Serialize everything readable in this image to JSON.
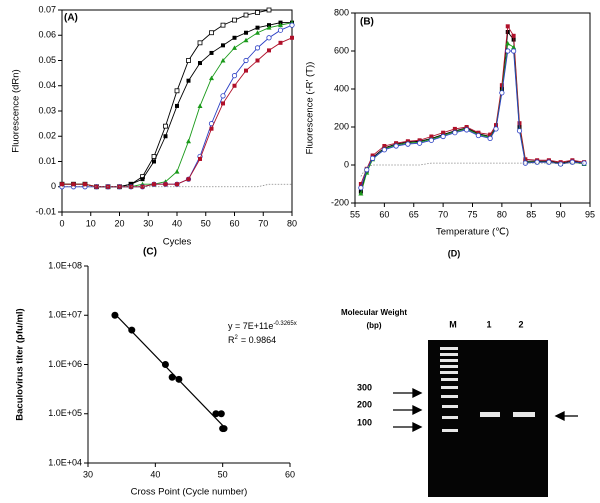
{
  "chart_data": [
    {
      "type": "line",
      "title": "(A)",
      "x_label": "Cycles",
      "y_label": "Fluorescence (dRn)",
      "x": [
        0,
        4,
        8,
        12,
        16,
        20,
        24,
        28,
        32,
        36,
        40,
        44,
        48,
        52,
        56,
        60,
        64,
        68,
        72,
        76,
        80
      ],
      "xlim": [
        0,
        80
      ],
      "xticks": [
        0,
        10,
        20,
        30,
        40,
        50,
        60,
        70,
        80
      ],
      "ylim": [
        -0.01,
        0.07
      ],
      "yticks": [
        -0.01,
        0,
        0.01,
        0.02,
        0.03,
        0.04,
        0.05,
        0.06,
        0.07
      ],
      "series": [
        {
          "color": "#000000",
          "marker": "square-open",
          "values": [
            0.001,
            0.001,
            0.001,
            0,
            0,
            0,
            0.001,
            0.004,
            0.012,
            0.024,
            0.038,
            0.05,
            0.057,
            0.061,
            0.064,
            0.066,
            0.068,
            0.069,
            0.07,
            null,
            null
          ]
        },
        {
          "color": "#000000",
          "marker": "square-filled",
          "values": [
            0.001,
            0.001,
            0.001,
            0,
            0,
            0,
            0.001,
            0.003,
            0.01,
            0.02,
            0.032,
            0.042,
            0.049,
            0.053,
            0.056,
            0.059,
            0.061,
            0.063,
            0.064,
            0.065,
            0.065
          ]
        },
        {
          "color": "#1a9a1a",
          "marker": "triangle",
          "values": [
            0.001,
            0.001,
            0.001,
            0,
            0,
            0,
            0,
            0.001,
            0.001,
            0.002,
            0.006,
            0.018,
            0.032,
            0.043,
            0.05,
            0.055,
            0.058,
            0.061,
            0.063,
            0.064,
            0.065
          ]
        },
        {
          "color": "#2b3fc4",
          "marker": "circle-open",
          "values": [
            0,
            0,
            0,
            0,
            0,
            0,
            0,
            0,
            0.001,
            0.001,
            0.001,
            0.003,
            0.012,
            0.025,
            0.036,
            0.044,
            0.05,
            0.055,
            0.059,
            0.062,
            0.064
          ]
        },
        {
          "color": "#b0102a",
          "marker": "square-filled",
          "values": [
            0.001,
            0.001,
            0.001,
            0,
            0,
            0,
            0,
            0,
            0.001,
            0.001,
            0.001,
            0.003,
            0.011,
            0.023,
            0.033,
            0.04,
            0.046,
            0.05,
            0.054,
            0.057,
            0.059
          ]
        },
        {
          "color": "#888888",
          "marker": "none",
          "dashed": true,
          "values": [
            0,
            0,
            0,
            0,
            0,
            0,
            0,
            0,
            0,
            0,
            0,
            0,
            0,
            0,
            0,
            0,
            0,
            0,
            0.001,
            0.001,
            0.001
          ]
        }
      ]
    },
    {
      "type": "line",
      "title": "(B)",
      "x_label": "Temperature (℃)",
      "y_label": "Fluorescence (-R' (T))",
      "x": [
        56,
        57,
        58,
        60,
        62,
        64,
        66,
        68,
        70,
        72,
        74,
        76,
        78,
        79,
        80,
        81,
        82,
        83,
        84,
        86,
        88,
        90,
        92,
        94
      ],
      "xlim": [
        55,
        95
      ],
      "xticks": [
        55,
        60,
        65,
        70,
        75,
        80,
        85,
        90,
        95
      ],
      "ylim": [
        -200,
        800
      ],
      "yticks": [
        -200,
        0,
        200,
        400,
        600,
        800
      ],
      "series": [
        {
          "color": "#000000",
          "marker": "square-filled",
          "values": [
            -140,
            -30,
            40,
            90,
            110,
            120,
            125,
            140,
            160,
            180,
            195,
            165,
            150,
            200,
            400,
            700,
            660,
            200,
            20,
            20,
            20,
            10,
            20,
            10
          ]
        },
        {
          "color": "#b0102a",
          "marker": "square-filled",
          "values": [
            -100,
            -20,
            50,
            100,
            115,
            125,
            130,
            150,
            170,
            190,
            200,
            170,
            160,
            210,
            420,
            730,
            680,
            220,
            30,
            25,
            25,
            15,
            25,
            15
          ]
        },
        {
          "color": "#1a9a1a",
          "marker": "triangle",
          "values": [
            -150,
            -40,
            30,
            85,
            105,
            115,
            120,
            135,
            155,
            175,
            190,
            160,
            145,
            195,
            390,
            640,
            620,
            190,
            15,
            15,
            15,
            5,
            15,
            5
          ]
        },
        {
          "color": "#2b3fc4",
          "marker": "circle-open",
          "values": [
            -120,
            -25,
            35,
            80,
            100,
            110,
            115,
            130,
            150,
            170,
            185,
            155,
            140,
            190,
            380,
            600,
            600,
            180,
            10,
            15,
            15,
            5,
            15,
            10
          ]
        },
        {
          "color": "#888888",
          "marker": "none",
          "dashed": true,
          "values": [
            -60,
            -10,
            0,
            0,
            0,
            0,
            0,
            10,
            10,
            10,
            10,
            10,
            10,
            10,
            10,
            10,
            10,
            10,
            10,
            10,
            10,
            10,
            10,
            10
          ]
        }
      ]
    },
    {
      "type": "scatter",
      "title": "(C)",
      "x_label": "Cross Point (Cycle number)",
      "y_label": "Baculovirus titer (pfu/ml)",
      "log_y": true,
      "color": "#000000",
      "x": [
        34,
        36.5,
        41.5,
        42.5,
        43.5,
        49,
        49.8,
        50,
        50.2
      ],
      "values": [
        10000000,
        5000000,
        1000000,
        550000,
        500000,
        100000,
        100000,
        50000,
        50000
      ],
      "trendline": {
        "x": [
          34,
          50
        ],
        "values": [
          10600000,
          58000
        ]
      },
      "equation": {
        "text": "y = 7E+11e",
        "sup": "-0.3265x"
      },
      "r_squared": {
        "text": "R",
        "sup": "2",
        "rest": "= 0.9864"
      },
      "xlim": [
        30,
        60
      ],
      "xticks": [
        30,
        40,
        50,
        60
      ],
      "ylim": [
        10000,
        100000000
      ],
      "yticks": [
        {
          "value": 10000,
          "label": "1.0E+04"
        },
        {
          "value": 100000,
          "label": "1.0E+05"
        },
        {
          "value": 1000000,
          "label": "1.0E+06"
        },
        {
          "value": 10000000,
          "label": "1.0E+07"
        },
        {
          "value": 100000000,
          "label": "1.0E+08"
        }
      ]
    }
  ],
  "gel": {
    "title": "(D)",
    "axis_title": "Molecular Weight",
    "axis_unit": "(bp)",
    "lanes": [
      "M",
      "1",
      "2"
    ],
    "markers": [
      "300",
      "200",
      "100"
    ]
  }
}
